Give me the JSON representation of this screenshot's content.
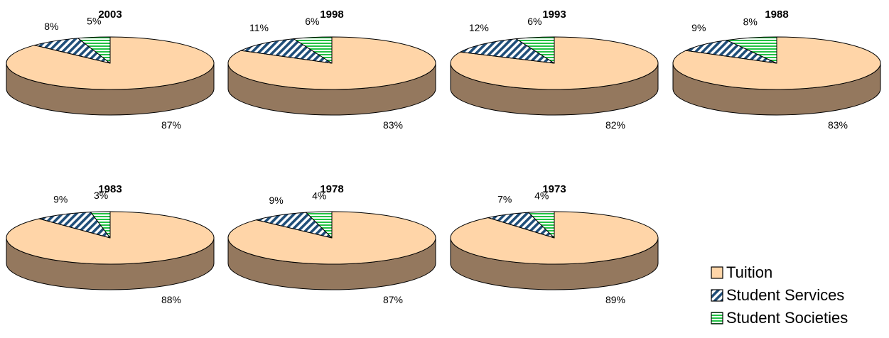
{
  "chart_data": {
    "type": "pie",
    "categories": [
      "Tuition",
      "Student Services",
      "Student Societies"
    ],
    "colors": {
      "Tuition": "#FFD5A8",
      "Tuition_side": "#94785E",
      "Student Services": "#1F4E79",
      "Student Societies": "#22C244"
    },
    "legend_position": "bottom-right",
    "charts": [
      {
        "title": "2003",
        "values": [
          87,
          8,
          5
        ],
        "labels": [
          "87%",
          "8%",
          "5%"
        ]
      },
      {
        "title": "1998",
        "values": [
          83,
          11,
          6
        ],
        "labels": [
          "83%",
          "11%",
          "6%"
        ]
      },
      {
        "title": "1993",
        "values": [
          82,
          12,
          6
        ],
        "labels": [
          "82%",
          "12%",
          "6%"
        ]
      },
      {
        "title": "1988",
        "values": [
          83,
          9,
          8
        ],
        "labels": [
          "83%",
          "9%",
          "8%"
        ]
      },
      {
        "title": "1983",
        "values": [
          88,
          9,
          3
        ],
        "labels": [
          "88%",
          "9%",
          "3%"
        ]
      },
      {
        "title": "1978",
        "values": [
          87,
          9,
          4
        ],
        "labels": [
          "87%",
          "9%",
          "4%"
        ]
      },
      {
        "title": "1973",
        "values": [
          89,
          7,
          4
        ],
        "labels": [
          "89%",
          "7%",
          "4%"
        ]
      }
    ]
  }
}
